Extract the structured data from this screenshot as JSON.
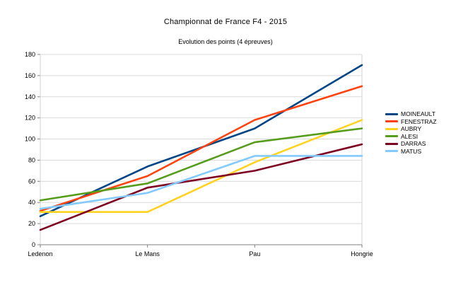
{
  "chart_data": {
    "type": "line",
    "title": "Championnat de France F4 - 2015",
    "subtitle": "Evolution des points (4 épreuves)",
    "categories": [
      "Ledenon",
      "Le Mans",
      "Pau",
      "Hongrie"
    ],
    "series": [
      {
        "name": "MOINEAULT",
        "color": "#004586",
        "values": [
          27,
          74,
          110,
          170
        ]
      },
      {
        "name": "FENESTRAZ",
        "color": "#FF420E",
        "values": [
          32,
          65,
          118,
          150
        ]
      },
      {
        "name": "AUBRY",
        "color": "#FFD320",
        "values": [
          31,
          31,
          78,
          118
        ]
      },
      {
        "name": "ALESI",
        "color": "#579D1C",
        "values": [
          42,
          58,
          97,
          110
        ]
      },
      {
        "name": "DARRAS",
        "color": "#7E0021",
        "values": [
          14,
          54,
          70,
          95
        ]
      },
      {
        "name": "MATUS",
        "color": "#83CAFF",
        "values": [
          34,
          49,
          84,
          84
        ]
      }
    ],
    "xlabel": "",
    "ylabel": "",
    "ylim": [
      0,
      180
    ],
    "ytick_step": 20,
    "yticks": [
      0,
      20,
      40,
      60,
      80,
      100,
      120,
      140,
      160,
      180
    ],
    "grid": true,
    "legend_position": "right"
  },
  "colors": {
    "background": "#ffffff",
    "gridline": "#d9d9d9",
    "plot_border": "#d3d3d3",
    "axis": "#808080",
    "text": "#000000"
  }
}
